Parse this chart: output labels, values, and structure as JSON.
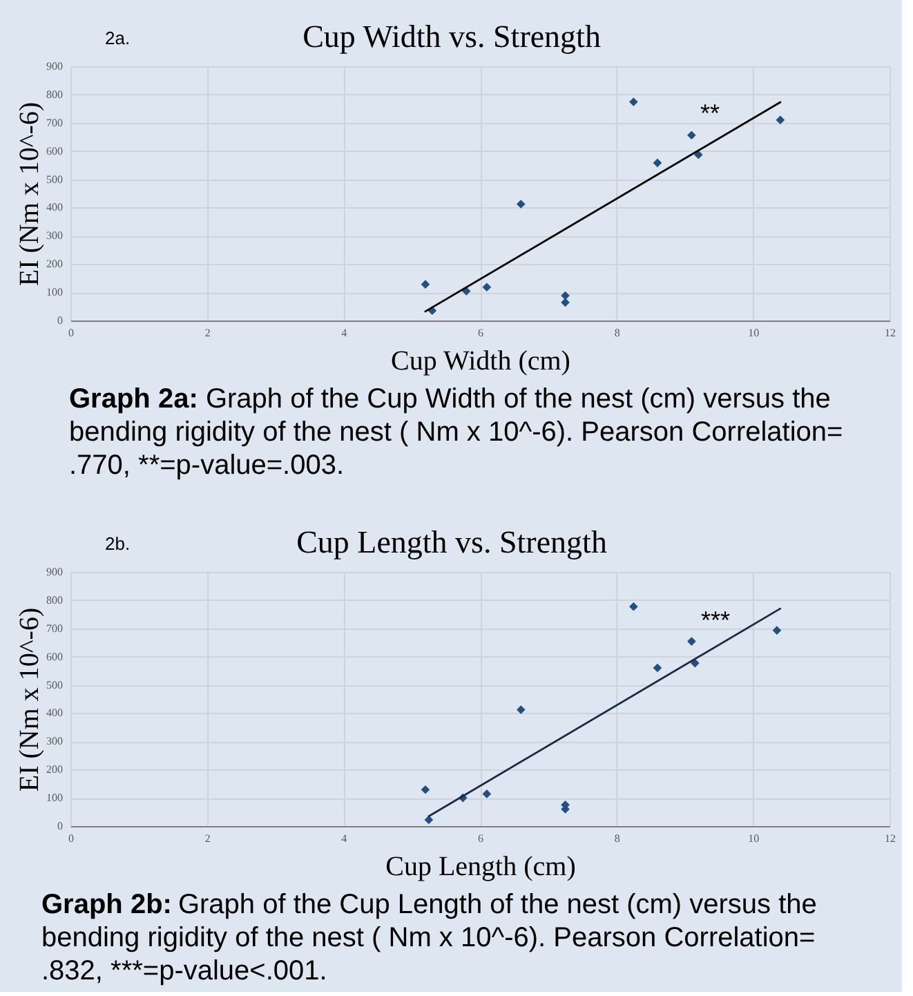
{
  "chart_data": [
    {
      "type": "scatter",
      "title": "Cup Width vs. Strength",
      "xlabel": "Cup Width (cm)",
      "ylabel": "EI (Nm x 10^-6)",
      "annotations": [
        "2a.",
        "**",
        "Graph 2a: Graph of the Cup Width of the nest (cm) versus the bending rigidity of the nest ( Nm x 10^-6). Pearson Correlation= .770, **=p-value=.003."
      ],
      "xlim": [
        0,
        12
      ],
      "xticks": [
        0,
        2,
        4,
        6,
        8,
        10,
        12
      ],
      "ylim": [
        0,
        900
      ],
      "yticks": [
        0,
        100,
        200,
        300,
        400,
        500,
        600,
        700,
        800,
        900
      ],
      "grid": true,
      "marker": "diamond",
      "series": [
        {
          "type": "scatter",
          "color": "#24507f",
          "x": [
            5.2,
            5.3,
            5.8,
            6.1,
            6.6,
            7.25,
            7.25,
            8.25,
            8.6,
            9.1,
            9.2,
            10.4
          ],
          "values": [
            128,
            35,
            104,
            118,
            412,
            88,
            64,
            774,
            558,
            656,
            587,
            710
          ]
        },
        {
          "type": "line",
          "color": "#000000",
          "marker": "none",
          "x": [
            5.2,
            10.4
          ],
          "values": [
            32,
            773
          ]
        }
      ]
    },
    {
      "type": "scatter",
      "title": "Cup Length vs. Strength",
      "xlabel": "Cup Length (cm)",
      "ylabel": "EI (Nm x 10^-6)",
      "annotations": [
        "2b.",
        "***",
        "Graph 2b: Graph of the Cup Length of the nest (cm) versus the bending rigidity of the nest ( Nm x 10^-6). Pearson Correlation= .832, ***=p-value<.001."
      ],
      "xlim": [
        0,
        12
      ],
      "xticks": [
        0,
        2,
        4,
        6,
        8,
        10,
        12
      ],
      "ylim": [
        0,
        900
      ],
      "yticks": [
        0,
        100,
        200,
        300,
        400,
        500,
        600,
        700,
        800,
        900
      ],
      "grid": true,
      "marker": "diamond",
      "series": [
        {
          "type": "scatter",
          "color": "#24507f",
          "x": [
            5.2,
            5.25,
            5.75,
            6.1,
            6.6,
            7.25,
            7.25,
            8.25,
            8.6,
            9.1,
            9.15,
            10.35
          ],
          "values": [
            129,
            22,
            100,
            114,
            412,
            75,
            60,
            777,
            560,
            654,
            577,
            693
          ]
        },
        {
          "type": "line",
          "color": "#1c2b44",
          "marker": "none",
          "x": [
            5.25,
            10.4
          ],
          "values": [
            35,
            770
          ]
        }
      ]
    }
  ]
}
